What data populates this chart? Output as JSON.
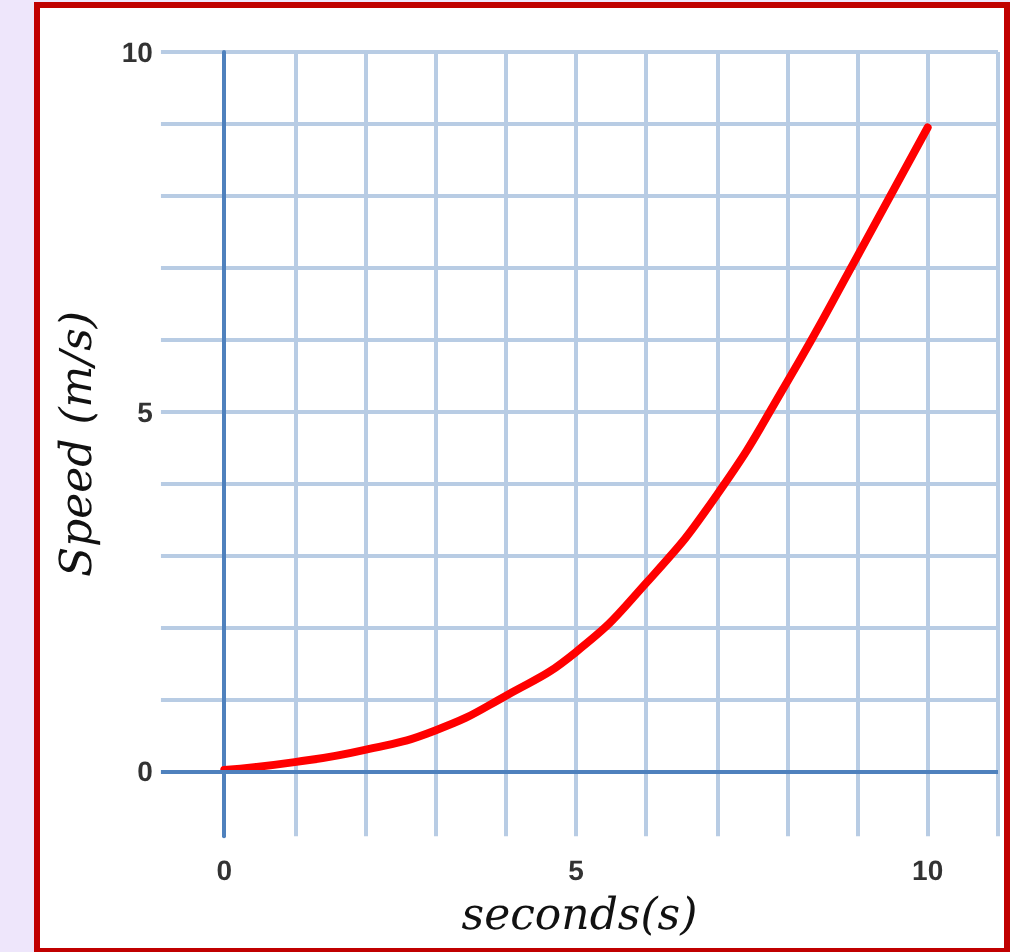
{
  "chart_data": {
    "type": "line",
    "xlabel": "seconds(s)",
    "ylabel": "Speed (m/s)",
    "x": [
      0,
      1,
      2,
      3,
      4,
      5,
      6,
      7,
      8,
      9,
      10
    ],
    "series": [
      {
        "color": "#ff0000",
        "values": [
          0.02,
          0.13,
          0.3,
          0.57,
          1.05,
          1.66,
          2.62,
          3.84,
          5.41,
          7.16,
          8.95
        ]
      }
    ],
    "xlim": [
      -0.9,
      11
    ],
    "ylim": [
      -0.9,
      10
    ],
    "xticks": [
      0,
      {
        "value": 1,
        "label": null
      },
      {
        "value": 2,
        "label": null
      },
      {
        "value": 3,
        "label": null
      },
      {
        "value": 4,
        "label": null
      },
      5,
      {
        "value": 6,
        "label": null
      },
      {
        "value": 7,
        "label": null
      },
      {
        "value": 8,
        "label": null
      },
      {
        "value": 9,
        "label": null
      },
      10,
      {
        "value": 11,
        "label": null
      }
    ],
    "yticks": [
      0,
      {
        "value": 1,
        "label": null
      },
      {
        "value": 2,
        "label": null
      },
      {
        "value": 3,
        "label": null
      },
      {
        "value": 4,
        "label": null
      },
      5,
      {
        "value": 6,
        "label": null
      },
      {
        "value": 7,
        "label": null
      },
      {
        "value": 8,
        "label": null
      },
      {
        "value": 9,
        "label": null
      },
      10
    ],
    "ref_lines": [
      {
        "axis": "y",
        "value": 0,
        "color": "#4f81bd"
      }
    ],
    "grid": true,
    "marker": "none",
    "line_style": "solid"
  }
}
